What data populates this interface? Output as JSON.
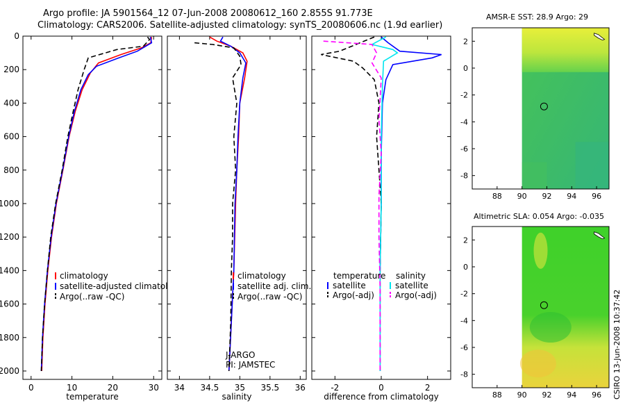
{
  "header": {
    "line1": "Argo profile: JA 5901564_12 07-Jun-2008 20080612_160 2.855S 91.773E",
    "line2": "Climatology: CARS2006. Satellite-adjusted climatology: synTS_20080606.nc (1.9d earlier)"
  },
  "colors": {
    "red": "#ff0000",
    "blue": "#0000ff",
    "black": "#000000",
    "cyan": "#00e5ee",
    "magenta": "#ff00ff"
  },
  "chart_data": [
    {
      "type": "line",
      "id": "temperature",
      "xlabel": "temperature",
      "ylabel": "",
      "xlim": [
        -2,
        32
      ],
      "ylim": [
        2050,
        0
      ],
      "xticks": [
        "0",
        "10",
        "20",
        "30"
      ],
      "yticks": [
        "0",
        "200",
        "400",
        "600",
        "800",
        "1000",
        "1200",
        "1400",
        "1600",
        "1800",
        "2000"
      ],
      "series": [
        {
          "name": "climatology",
          "color": "red",
          "dash": "solid",
          "points": [
            [
              29.5,
              5
            ],
            [
              29.3,
              40
            ],
            [
              27,
              70
            ],
            [
              22,
              110
            ],
            [
              16.5,
              160
            ],
            [
              14.5,
              220
            ],
            [
              12.5,
              320
            ],
            [
              10.8,
              450
            ],
            [
              9.3,
              600
            ],
            [
              7.8,
              800
            ],
            [
              6.2,
              1000
            ],
            [
              5,
              1200
            ],
            [
              4.1,
              1400
            ],
            [
              3.4,
              1600
            ],
            [
              2.9,
              1800
            ],
            [
              2.6,
              2000
            ]
          ]
        },
        {
          "name": "satellite-adjusted climatology",
          "color": "blue",
          "dash": "solid",
          "points": [
            [
              29.2,
              5
            ],
            [
              29.5,
              40
            ],
            [
              26,
              90
            ],
            [
              21.5,
              130
            ],
            [
              16,
              180
            ],
            [
              14,
              230
            ],
            [
              12.2,
              320
            ],
            [
              10.6,
              450
            ],
            [
              9.2,
              600
            ],
            [
              7.7,
              800
            ],
            [
              6.1,
              1000
            ],
            [
              4.9,
              1200
            ],
            [
              4,
              1400
            ],
            [
              3.3,
              1600
            ],
            [
              2.8,
              1800
            ],
            [
              2.5,
              2000
            ]
          ]
        },
        {
          "name": "Argo(..raw -QC)",
          "color": "black",
          "dash": "dash",
          "points": [
            [
              28.5,
              5
            ],
            [
              29,
              20
            ],
            [
              27.5,
              60
            ],
            [
              21,
              80
            ],
            [
              14,
              130
            ],
            [
              13,
              200
            ],
            [
              11.5,
              320
            ],
            [
              10.3,
              450
            ],
            [
              9,
              600
            ],
            [
              7.6,
              800
            ],
            [
              6,
              1000
            ],
            [
              4.8,
              1200
            ],
            [
              4,
              1400
            ],
            [
              3.3,
              1600
            ],
            [
              2.8,
              1800
            ],
            [
              2.5,
              2000
            ]
          ]
        }
      ],
      "legend": [
        {
          "label": "climatology",
          "color": "red",
          "dash": "solid"
        },
        {
          "label": "satellite-adjusted climatology",
          "color": "blue",
          "dash": "solid"
        },
        {
          "label": "Argo(..raw -QC)",
          "color": "black",
          "dash": "dash"
        }
      ],
      "legend_anchor": "lower-middle"
    },
    {
      "type": "line",
      "id": "salinity",
      "xlabel": "salinity",
      "ylabel": "",
      "xlim": [
        33.8,
        36.1
      ],
      "ylim": [
        2050,
        0
      ],
      "xticks": [
        "34",
        "34.5",
        "35",
        "35.5",
        "36"
      ],
      "series": [
        {
          "name": "climatology",
          "color": "red",
          "dash": "solid",
          "points": [
            [
              34.5,
              5
            ],
            [
              34.62,
              30
            ],
            [
              34.85,
              60
            ],
            [
              35.05,
              100
            ],
            [
              35.12,
              150
            ],
            [
              35.08,
              250
            ],
            [
              35.0,
              400
            ],
            [
              34.98,
              600
            ],
            [
              34.95,
              800
            ],
            [
              34.93,
              1000
            ],
            [
              34.9,
              1400
            ],
            [
              34.86,
              1700
            ],
            [
              34.82,
              2000
            ]
          ]
        },
        {
          "name": "satellite adj. clim.",
          "color": "blue",
          "dash": "solid",
          "points": [
            [
              34.72,
              5
            ],
            [
              34.68,
              30
            ],
            [
              34.85,
              60
            ],
            [
              35.0,
              100
            ],
            [
              35.1,
              160
            ],
            [
              35.05,
              250
            ],
            [
              35.0,
              400
            ],
            [
              34.97,
              600
            ],
            [
              34.95,
              800
            ],
            [
              34.92,
              1000
            ],
            [
              34.9,
              1400
            ],
            [
              34.86,
              1700
            ],
            [
              34.82,
              2000
            ]
          ]
        },
        {
          "name": "Argo(..raw -QC)",
          "color": "black",
          "dash": "dash",
          "points": [
            [
              34.25,
              40
            ],
            [
              34.55,
              50
            ],
            [
              34.9,
              70
            ],
            [
              35.0,
              120
            ],
            [
              35.02,
              170
            ],
            [
              34.88,
              250
            ],
            [
              34.95,
              400
            ],
            [
              34.9,
              600
            ],
            [
              34.93,
              800
            ],
            [
              34.88,
              1000
            ],
            [
              34.88,
              1200
            ],
            [
              34.86,
              1400
            ],
            [
              34.85,
              1700
            ],
            [
              34.82,
              2000
            ]
          ]
        }
      ],
      "legend": [
        {
          "label": "climatology",
          "color": "red",
          "dash": "solid"
        },
        {
          "label": "satellite adj. clim.",
          "color": "blue",
          "dash": "solid"
        },
        {
          "label": "Argo(..raw -QC)",
          "color": "black",
          "dash": "dash"
        }
      ],
      "legend_anchor": "lower-middle",
      "annotations": [
        "J-ARGO",
        "PI: JAMSTEC"
      ]
    },
    {
      "type": "line",
      "id": "difference",
      "xlabel": "difference from climatology",
      "ylabel": "",
      "xlim": [
        -3,
        3
      ],
      "ylim": [
        2050,
        0
      ],
      "xticks": [
        "-2",
        "0",
        "2"
      ],
      "series": [
        {
          "name": "temperature satellite",
          "color": "blue",
          "dash": "solid",
          "points": [
            [
              0,
              5
            ],
            [
              0.3,
              40
            ],
            [
              0.8,
              90
            ],
            [
              2.6,
              110
            ],
            [
              2.2,
              130
            ],
            [
              0.5,
              170
            ],
            [
              0.2,
              260
            ],
            [
              0.05,
              400
            ],
            [
              0.0,
              700
            ],
            [
              0.0,
              1000
            ],
            [
              -0.05,
              1400
            ],
            [
              -0.05,
              1700
            ],
            [
              -0.05,
              2000
            ]
          ]
        },
        {
          "name": "temperature Argo(-adj)",
          "color": "black",
          "dash": "dash",
          "points": [
            [
              -0.3,
              5
            ],
            [
              -1.8,
              90
            ],
            [
              -2.6,
              110
            ],
            [
              -1.2,
              150
            ],
            [
              -0.8,
              190
            ],
            [
              -0.3,
              260
            ],
            [
              -0.1,
              400
            ],
            [
              -0.2,
              600
            ],
            [
              -0.1,
              800
            ],
            [
              0,
              1000
            ],
            [
              -0.05,
              1400
            ],
            [
              -0.05,
              1700
            ],
            [
              -0.05,
              2000
            ]
          ]
        },
        {
          "name": "salinity satellite",
          "color": "cyan",
          "dash": "solid",
          "points": [
            [
              0.2,
              5
            ],
            [
              -0.4,
              50
            ],
            [
              0.5,
              80
            ],
            [
              0.7,
              100
            ],
            [
              0.1,
              150
            ],
            [
              0.05,
              300
            ],
            [
              0.0,
              600
            ],
            [
              0.0,
              1000
            ],
            [
              -0.05,
              1400
            ],
            [
              -0.05,
              1700
            ],
            [
              -0.05,
              2000
            ]
          ]
        },
        {
          "name": "salinity Argo(-adj)",
          "color": "magenta",
          "dash": "dash",
          "points": [
            [
              -2.5,
              30
            ],
            [
              -0.4,
              50
            ],
            [
              -0.2,
              100
            ],
            [
              -0.4,
              160
            ],
            [
              0.0,
              250
            ],
            [
              -0.1,
              500
            ],
            [
              0.0,
              700
            ],
            [
              -0.1,
              950
            ],
            [
              -0.1,
              1200
            ],
            [
              -0.05,
              1500
            ],
            [
              -0.05,
              1700
            ],
            [
              -0.05,
              2000
            ]
          ]
        }
      ],
      "legend": [
        {
          "label": "temperature",
          "color": "",
          "dash": "none"
        },
        {
          "label": "satellite",
          "color": "blue",
          "dash": "solid"
        },
        {
          "label": "Argo(-adj)",
          "color": "black",
          "dash": "dash"
        },
        {
          "label": "salinity",
          "color": "",
          "dash": "none"
        },
        {
          "label": "satellite",
          "color": "cyan",
          "dash": "solid"
        },
        {
          "label": "Argo(-adj)",
          "color": "magenta",
          "dash": "dash"
        }
      ],
      "legend_anchor": "lower-middle"
    },
    {
      "type": "heatmap",
      "id": "sst_map",
      "title": "AMSR-E SST: 28.9 Argo: 29",
      "xlim": [
        86,
        97
      ],
      "ylim": [
        -9,
        3
      ],
      "xticks": [
        "88",
        "90",
        "92",
        "94",
        "96"
      ],
      "yticks": [
        "2",
        "0",
        "-2",
        "-4",
        "-6",
        "-8"
      ],
      "data_extent_lon": [
        90,
        97
      ],
      "float_position": [
        91.773,
        -2.855
      ]
    },
    {
      "type": "heatmap",
      "id": "sla_map",
      "title": "Altimetric SLA: 0.054 Argo: -0.035",
      "xlim": [
        86,
        97
      ],
      "ylim": [
        -9,
        3
      ],
      "xticks": [
        "88",
        "90",
        "92",
        "94",
        "96"
      ],
      "yticks": [
        "2",
        "0",
        "-2",
        "-4",
        "-6",
        "-8"
      ],
      "data_extent_lon": [
        90,
        97
      ],
      "float_position": [
        91.773,
        -2.855
      ]
    }
  ],
  "sidebar": {
    "stamp": "CSIRO 13-Jun-2008 10:37:42"
  }
}
